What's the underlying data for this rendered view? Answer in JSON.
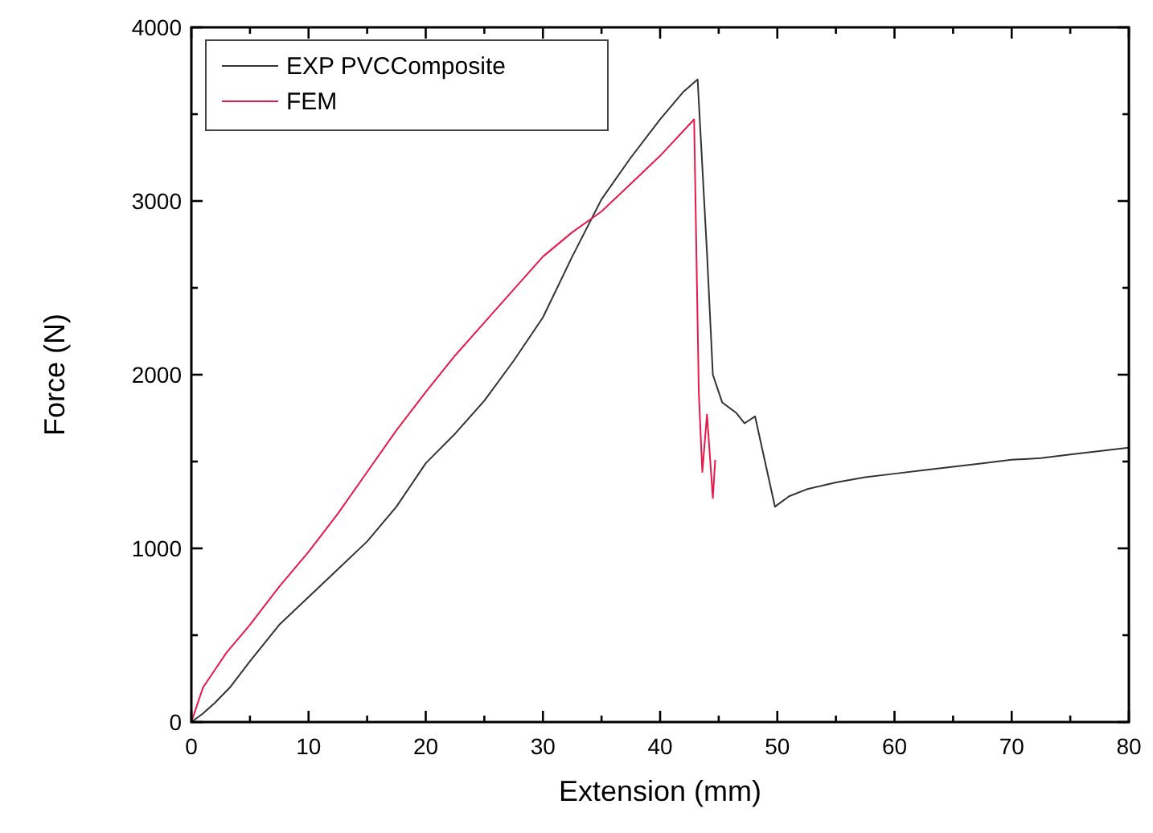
{
  "chart_data": {
    "type": "line",
    "xlabel": "Extension (mm)",
    "ylabel": "Force (N)",
    "xlim": [
      0,
      80
    ],
    "ylim": [
      0,
      4000
    ],
    "xticks": [
      0,
      {
        "value": 5,
        "label": null
      },
      10,
      {
        "value": 15,
        "label": null
      },
      20,
      {
        "value": 25,
        "label": null
      },
      30,
      {
        "value": 35,
        "label": null
      },
      40,
      {
        "value": 45,
        "label": null
      },
      50,
      {
        "value": 55,
        "label": null
      },
      60,
      {
        "value": 65,
        "label": null
      },
      70,
      {
        "value": 75,
        "label": null
      },
      80
    ],
    "yticks": [
      0,
      {
        "value": 500,
        "label": null
      },
      1000,
      {
        "value": 1500,
        "label": null
      },
      2000,
      {
        "value": 2500,
        "label": null
      },
      3000,
      {
        "value": 3500,
        "label": null
      },
      4000
    ],
    "grid": false,
    "legend": "top left",
    "marker": "none",
    "line_style": "solid",
    "series": [
      {
        "name": "EXP PVCComposite",
        "color": "#333333",
        "x": [
          0,
          1,
          2,
          3.3,
          5,
          7.5,
          10,
          12.5,
          15,
          17.5,
          20,
          22.5,
          25,
          27.5,
          30,
          32.5,
          35,
          37.5,
          40,
          42,
          43.2,
          44,
          44.5,
          45.3,
          46.5,
          47.2,
          48.1,
          49.8,
          51,
          52.5,
          55,
          57.5,
          60,
          62.5,
          65,
          67.5,
          70,
          72.5,
          75,
          77.5,
          80
        ],
        "values": [
          0,
          50,
          110,
          200,
          350,
          560,
          720,
          880,
          1040,
          1240,
          1490,
          1660,
          1850,
          2080,
          2330,
          2680,
          3010,
          3250,
          3470,
          3630,
          3700,
          2700,
          2000,
          1840,
          1780,
          1720,
          1760,
          1240,
          1300,
          1340,
          1380,
          1410,
          1430,
          1450,
          1470,
          1490,
          1510,
          1520,
          1540,
          1560,
          1580
        ]
      },
      {
        "name": "FEM",
        "color": "#e8194a",
        "x": [
          0,
          0.5,
          1,
          2,
          3,
          5,
          7.5,
          10,
          12.5,
          15,
          17.5,
          20,
          22.5,
          25,
          27.5,
          30,
          32.5,
          35,
          37.5,
          40,
          42.9,
          43.3,
          43.6,
          44,
          44.5,
          44.7
        ],
        "values": [
          0,
          100,
          200,
          300,
          400,
          560,
          780,
          980,
          1200,
          1440,
          1680,
          1900,
          2110,
          2300,
          2490,
          2680,
          2820,
          2940,
          3100,
          3260,
          3470,
          1900,
          1440,
          1770,
          1290,
          1510
        ]
      }
    ]
  }
}
